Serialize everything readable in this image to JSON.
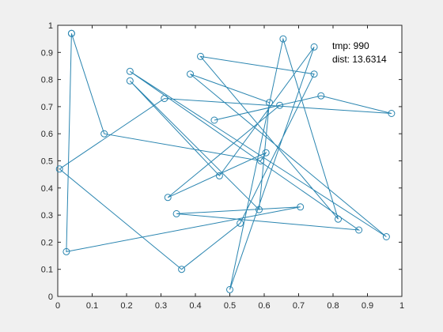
{
  "chart_data": {
    "type": "line",
    "title": "",
    "xlabel": "",
    "ylabel": "",
    "xlim": [
      0,
      1
    ],
    "ylim": [
      0,
      1
    ],
    "x_ticks": [
      "0",
      "0.1",
      "0.2",
      "0.3",
      "0.4",
      "0.5",
      "0.6",
      "0.7",
      "0.8",
      "0.9",
      "1"
    ],
    "y_ticks": [
      "0",
      "0.1",
      "0.2",
      "0.3",
      "0.4",
      "0.5",
      "0.6",
      "0.7",
      "0.8",
      "0.9",
      "1"
    ],
    "grid": false,
    "marker": "circle",
    "line_color": "#2a85b0",
    "annotations": [
      "tmp: 990",
      "dist: 13.6314"
    ],
    "series": [
      {
        "x": [
          0.04,
          0.135,
          0.59,
          0.605,
          0.32,
          0.645,
          0.455,
          0.765,
          0.97,
          0.31,
          0.005,
          0.36,
          0.53,
          0.745,
          0.415,
          0.815,
          0.655,
          0.5,
          0.745,
          0.47,
          0.21,
          0.585,
          0.615,
          0.385,
          0.955,
          0.21,
          0.875,
          0.345,
          0.705,
          0.025,
          0.04
        ],
        "y": [
          0.97,
          0.6,
          0.5,
          0.53,
          0.365,
          0.705,
          0.65,
          0.74,
          0.675,
          0.73,
          0.47,
          0.1,
          0.27,
          0.82,
          0.885,
          0.285,
          0.95,
          0.025,
          0.92,
          0.445,
          0.795,
          0.32,
          0.715,
          0.82,
          0.22,
          0.83,
          0.245,
          0.305,
          0.33,
          0.165,
          0.97
        ]
      }
    ]
  }
}
